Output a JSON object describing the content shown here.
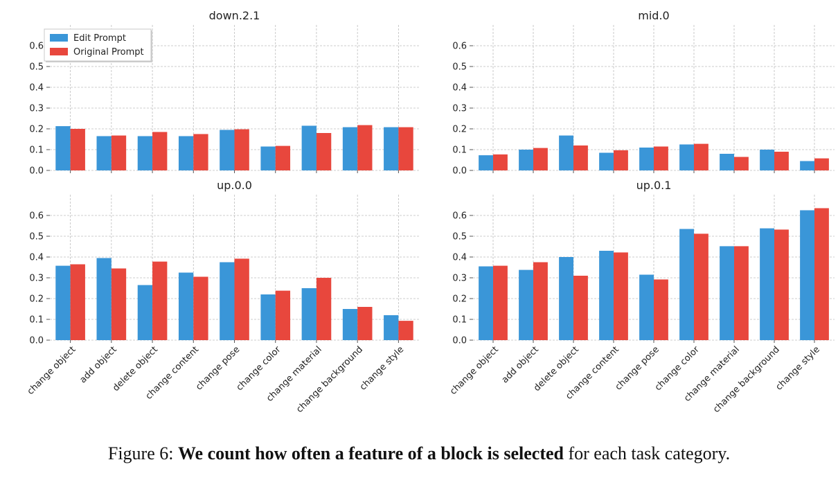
{
  "caption": {
    "prefix": "Figure 6:",
    "bold": "We count how often a feature of a block is selected",
    "rest": "for each task category."
  },
  "colors": {
    "edit": "#3a96d8",
    "original": "#e8473d"
  },
  "chart_data": [
    {
      "type": "bar",
      "title": "down.2.1",
      "categories": [
        "change object",
        "add object",
        "delete object",
        "change content",
        "change pose",
        "change color",
        "change material",
        "change background",
        "change style"
      ],
      "series": [
        {
          "name": "Edit Prompt",
          "values": [
            0.213,
            0.165,
            0.165,
            0.165,
            0.195,
            0.115,
            0.215,
            0.208,
            0.208
          ]
        },
        {
          "name": "Original Prompt",
          "values": [
            0.2,
            0.168,
            0.185,
            0.175,
            0.198,
            0.118,
            0.18,
            0.218,
            0.208
          ]
        }
      ],
      "yticks": [
        "0.0",
        "0.1",
        "0.2",
        "0.3",
        "0.4",
        "0.5",
        "0.6"
      ],
      "ylim": [
        0,
        0.7
      ],
      "grid": true,
      "legend": "top-left"
    },
    {
      "type": "bar",
      "title": "mid.0",
      "categories": [
        "change object",
        "add object",
        "delete object",
        "change content",
        "change pose",
        "change color",
        "change material",
        "change background",
        "change style"
      ],
      "series": [
        {
          "name": "Edit Prompt",
          "values": [
            0.073,
            0.1,
            0.168,
            0.085,
            0.11,
            0.125,
            0.08,
            0.1,
            0.045
          ]
        },
        {
          "name": "Original Prompt",
          "values": [
            0.077,
            0.108,
            0.12,
            0.097,
            0.115,
            0.128,
            0.065,
            0.09,
            0.058
          ]
        }
      ],
      "yticks": [
        "0.0",
        "0.1",
        "0.2",
        "0.3",
        "0.4",
        "0.5",
        "0.6"
      ],
      "ylim": [
        0,
        0.7
      ],
      "grid": true
    },
    {
      "type": "bar",
      "title": "up.0.0",
      "categories": [
        "change object",
        "add object",
        "delete object",
        "change content",
        "change pose",
        "change color",
        "change material",
        "change background",
        "change style"
      ],
      "series": [
        {
          "name": "Edit Prompt",
          "values": [
            0.358,
            0.395,
            0.265,
            0.325,
            0.375,
            0.22,
            0.25,
            0.15,
            0.12
          ]
        },
        {
          "name": "Original Prompt",
          "values": [
            0.365,
            0.345,
            0.378,
            0.305,
            0.392,
            0.238,
            0.3,
            0.16,
            0.093
          ]
        }
      ],
      "yticks": [
        "0.0",
        "0.1",
        "0.2",
        "0.3",
        "0.4",
        "0.5",
        "0.6"
      ],
      "ylim": [
        0,
        0.7
      ],
      "grid": true
    },
    {
      "type": "bar",
      "title": "up.0.1",
      "categories": [
        "change object",
        "add object",
        "delete object",
        "change content",
        "change pose",
        "change color",
        "change material",
        "change background",
        "change style"
      ],
      "series": [
        {
          "name": "Edit Prompt",
          "values": [
            0.355,
            0.338,
            0.4,
            0.43,
            0.315,
            0.535,
            0.452,
            0.538,
            0.625
          ]
        },
        {
          "name": "Original Prompt",
          "values": [
            0.358,
            0.375,
            0.31,
            0.422,
            0.292,
            0.512,
            0.452,
            0.532,
            0.635
          ]
        }
      ],
      "yticks": [
        "0.0",
        "0.1",
        "0.2",
        "0.3",
        "0.4",
        "0.5",
        "0.6"
      ],
      "ylim": [
        0,
        0.7
      ],
      "grid": true
    }
  ]
}
